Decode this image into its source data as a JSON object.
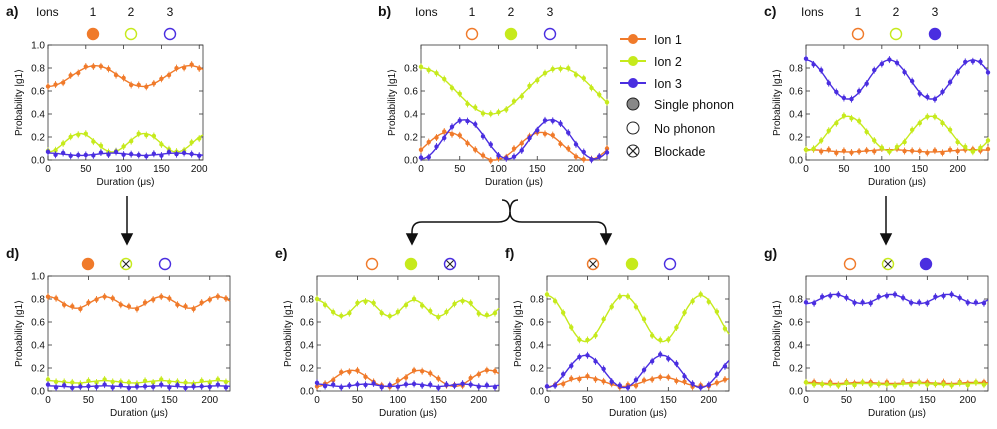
{
  "colors": {
    "ion1": "#f07a2a",
    "ion2": "#c6ea1c",
    "ion3": "#4a2ee0",
    "gray": "#888888"
  },
  "legend": {
    "ion1": "Ion 1",
    "ion2": "Ion 2",
    "ion3": "Ion 3",
    "single_phonon": "Single phonon",
    "no_phonon": "No phonon",
    "blockade": "Blockade"
  },
  "common": {
    "ions_label": "Ions",
    "ion_numbers": [
      "1",
      "2",
      "3"
    ],
    "xlabel": "Duration (μs)",
    "ylabel": "Probability |g1⟩"
  },
  "chart_data": [
    {
      "id": "a",
      "label": "a)",
      "type": "line+scatter",
      "xlim": [
        0,
        205
      ],
      "ylim": [
        0,
        1
      ],
      "xticks": [
        0,
        50,
        100,
        150,
        200
      ],
      "yticks": [
        0.0,
        0.2,
        0.4,
        0.6,
        0.8,
        1.0
      ],
      "show_ions": true,
      "indicators": [
        "filled",
        "open",
        "open"
      ],
      "series": [
        {
          "name": "Ion 1",
          "mean": 0.73,
          "amp": 0.09,
          "period": 125,
          "phase": 0.0,
          "sign": -1
        },
        {
          "name": "Ion 2",
          "mean": 0.15,
          "amp": 0.08,
          "period": 85,
          "phase": 0.0,
          "sign": -1
        },
        {
          "name": "Ion 3",
          "mean": 0.05,
          "amp": 0.01,
          "period": 85,
          "phase": 0.0,
          "sign": 1
        }
      ]
    },
    {
      "id": "b",
      "label": "b)",
      "type": "line+scatter",
      "xlim": [
        0,
        240
      ],
      "ylim": [
        0,
        1
      ],
      "xticks": [
        0,
        50,
        100,
        150,
        200
      ],
      "yticks": [
        0.0,
        0.2,
        0.4,
        0.6,
        0.8
      ],
      "show_ions": true,
      "indicators": [
        "open",
        "filled",
        "open"
      ],
      "series": [
        {
          "name": "Ion 1",
          "mean": 0.12,
          "amp": 0.12,
          "period": 120,
          "phase": 25,
          "sign": -1
        },
        {
          "name": "Ion 2",
          "mean": 0.6,
          "amp": 0.2,
          "period": 180,
          "phase": 0,
          "sign": 1
        },
        {
          "name": "Ion 3",
          "mean": 0.18,
          "amp": 0.17,
          "period": 112,
          "phase": 0,
          "sign": -1
        }
      ]
    },
    {
      "id": "c",
      "label": "c)",
      "type": "line+scatter",
      "xlim": [
        0,
        240
      ],
      "ylim": [
        0,
        1
      ],
      "xticks": [
        0,
        50,
        100,
        150,
        200
      ],
      "yticks": [
        0.0,
        0.2,
        0.4,
        0.6,
        0.8
      ],
      "show_ions": true,
      "indicators": [
        "open",
        "open",
        "filled"
      ],
      "series": [
        {
          "name": "Ion 1",
          "mean": 0.08,
          "amp": 0.01,
          "period": 110,
          "phase": 0,
          "sign": 1
        },
        {
          "name": "Ion 2",
          "mean": 0.23,
          "amp": 0.15,
          "period": 110,
          "phase": 0,
          "sign": -1
        },
        {
          "name": "Ion 3",
          "mean": 0.7,
          "amp": 0.17,
          "period": 110,
          "phase": 0,
          "sign": 1
        }
      ]
    },
    {
      "id": "d",
      "label": "d)",
      "type": "line+scatter",
      "xlim": [
        0,
        225
      ],
      "ylim": [
        0,
        1
      ],
      "xticks": [
        0,
        50,
        100,
        150,
        200
      ],
      "yticks": [
        0.0,
        0.2,
        0.4,
        0.6,
        0.8,
        1.0
      ],
      "show_ions": false,
      "indicators": [
        "filled",
        "blockade",
        "open"
      ],
      "series": [
        {
          "name": "Ion 1",
          "mean": 0.77,
          "amp": 0.05,
          "period": 70,
          "phase": 0,
          "sign": 1
        },
        {
          "name": "Ion 2",
          "mean": 0.08,
          "amp": 0.01,
          "period": 70,
          "phase": 0,
          "sign": 1
        },
        {
          "name": "Ion 3",
          "mean": 0.04,
          "amp": 0.005,
          "period": 70,
          "phase": 0,
          "sign": 1
        }
      ]
    },
    {
      "id": "e",
      "label": "e)",
      "type": "line+scatter",
      "xlim": [
        0,
        225
      ],
      "ylim": [
        0,
        1
      ],
      "xticks": [
        0,
        50,
        100,
        150,
        200
      ],
      "yticks": [
        0.0,
        0.2,
        0.4,
        0.6,
        0.8
      ],
      "show_ions": false,
      "indicators": [
        "open",
        "filled",
        "blockade"
      ],
      "series": [
        {
          "name": "Ion 1",
          "mean": 0.11,
          "amp": 0.07,
          "period": 85,
          "phase": 0,
          "sign": -1
        },
        {
          "name": "Ion 2",
          "mean": 0.72,
          "amp": 0.07,
          "period": 60,
          "phase": 0,
          "sign": 1
        },
        {
          "name": "Ion 3",
          "mean": 0.05,
          "amp": 0.01,
          "period": 60,
          "phase": 0,
          "sign": 1
        }
      ]
    },
    {
      "id": "f",
      "label": "f)",
      "type": "line+scatter",
      "xlim": [
        0,
        225
      ],
      "ylim": [
        0,
        1
      ],
      "xticks": [
        0,
        50,
        100,
        150,
        200
      ],
      "yticks": [
        0.0,
        0.2,
        0.4,
        0.6,
        0.8
      ],
      "show_ions": false,
      "indicators": [
        "blockade",
        "filled",
        "open"
      ],
      "series": [
        {
          "name": "Ion 1",
          "mean": 0.08,
          "amp": 0.04,
          "period": 95,
          "phase": 0,
          "sign": -1
        },
        {
          "name": "Ion 2",
          "mean": 0.63,
          "amp": 0.2,
          "period": 95,
          "phase": 0,
          "sign": 1
        },
        {
          "name": "Ion 3",
          "mean": 0.17,
          "amp": 0.14,
          "period": 95,
          "phase": 0,
          "sign": -1
        }
      ]
    },
    {
      "id": "g",
      "label": "g)",
      "type": "line+scatter",
      "xlim": [
        0,
        225
      ],
      "ylim": [
        0,
        1
      ],
      "xticks": [
        0,
        50,
        100,
        150,
        200
      ],
      "yticks": [
        0.0,
        0.2,
        0.4,
        0.6,
        0.8
      ],
      "show_ions": false,
      "indicators": [
        "open",
        "blockade",
        "filled"
      ],
      "series": [
        {
          "name": "Ion 1",
          "mean": 0.07,
          "amp": 0.005,
          "period": 70,
          "phase": 0,
          "sign": 1
        },
        {
          "name": "Ion 2",
          "mean": 0.06,
          "amp": 0.005,
          "period": 70,
          "phase": 0,
          "sign": 1
        },
        {
          "name": "Ion 3",
          "mean": 0.8,
          "amp": 0.04,
          "period": 70,
          "phase": 0,
          "sign": -1
        }
      ]
    }
  ]
}
